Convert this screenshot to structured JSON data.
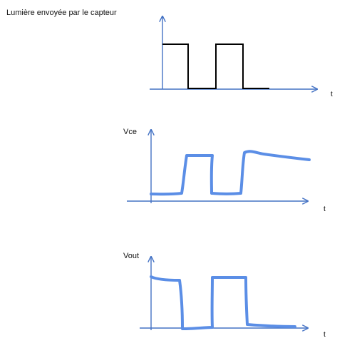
{
  "diagram": {
    "title": "Lumière envoyée par le capteur",
    "panels": [
      {
        "id": "light",
        "ylabel": "",
        "xlabel": "t",
        "signal": "light-pulses"
      },
      {
        "id": "vce",
        "ylabel": "Vce",
        "xlabel": "t",
        "signal": "vce-waveform"
      },
      {
        "id": "vout",
        "ylabel": "Vout",
        "xlabel": "t",
        "signal": "vout-waveform"
      }
    ]
  },
  "colors": {
    "axis": "#4472c4",
    "signal_light": "#000000",
    "signal_hand": "#5b8ee6",
    "text": "#111111"
  }
}
